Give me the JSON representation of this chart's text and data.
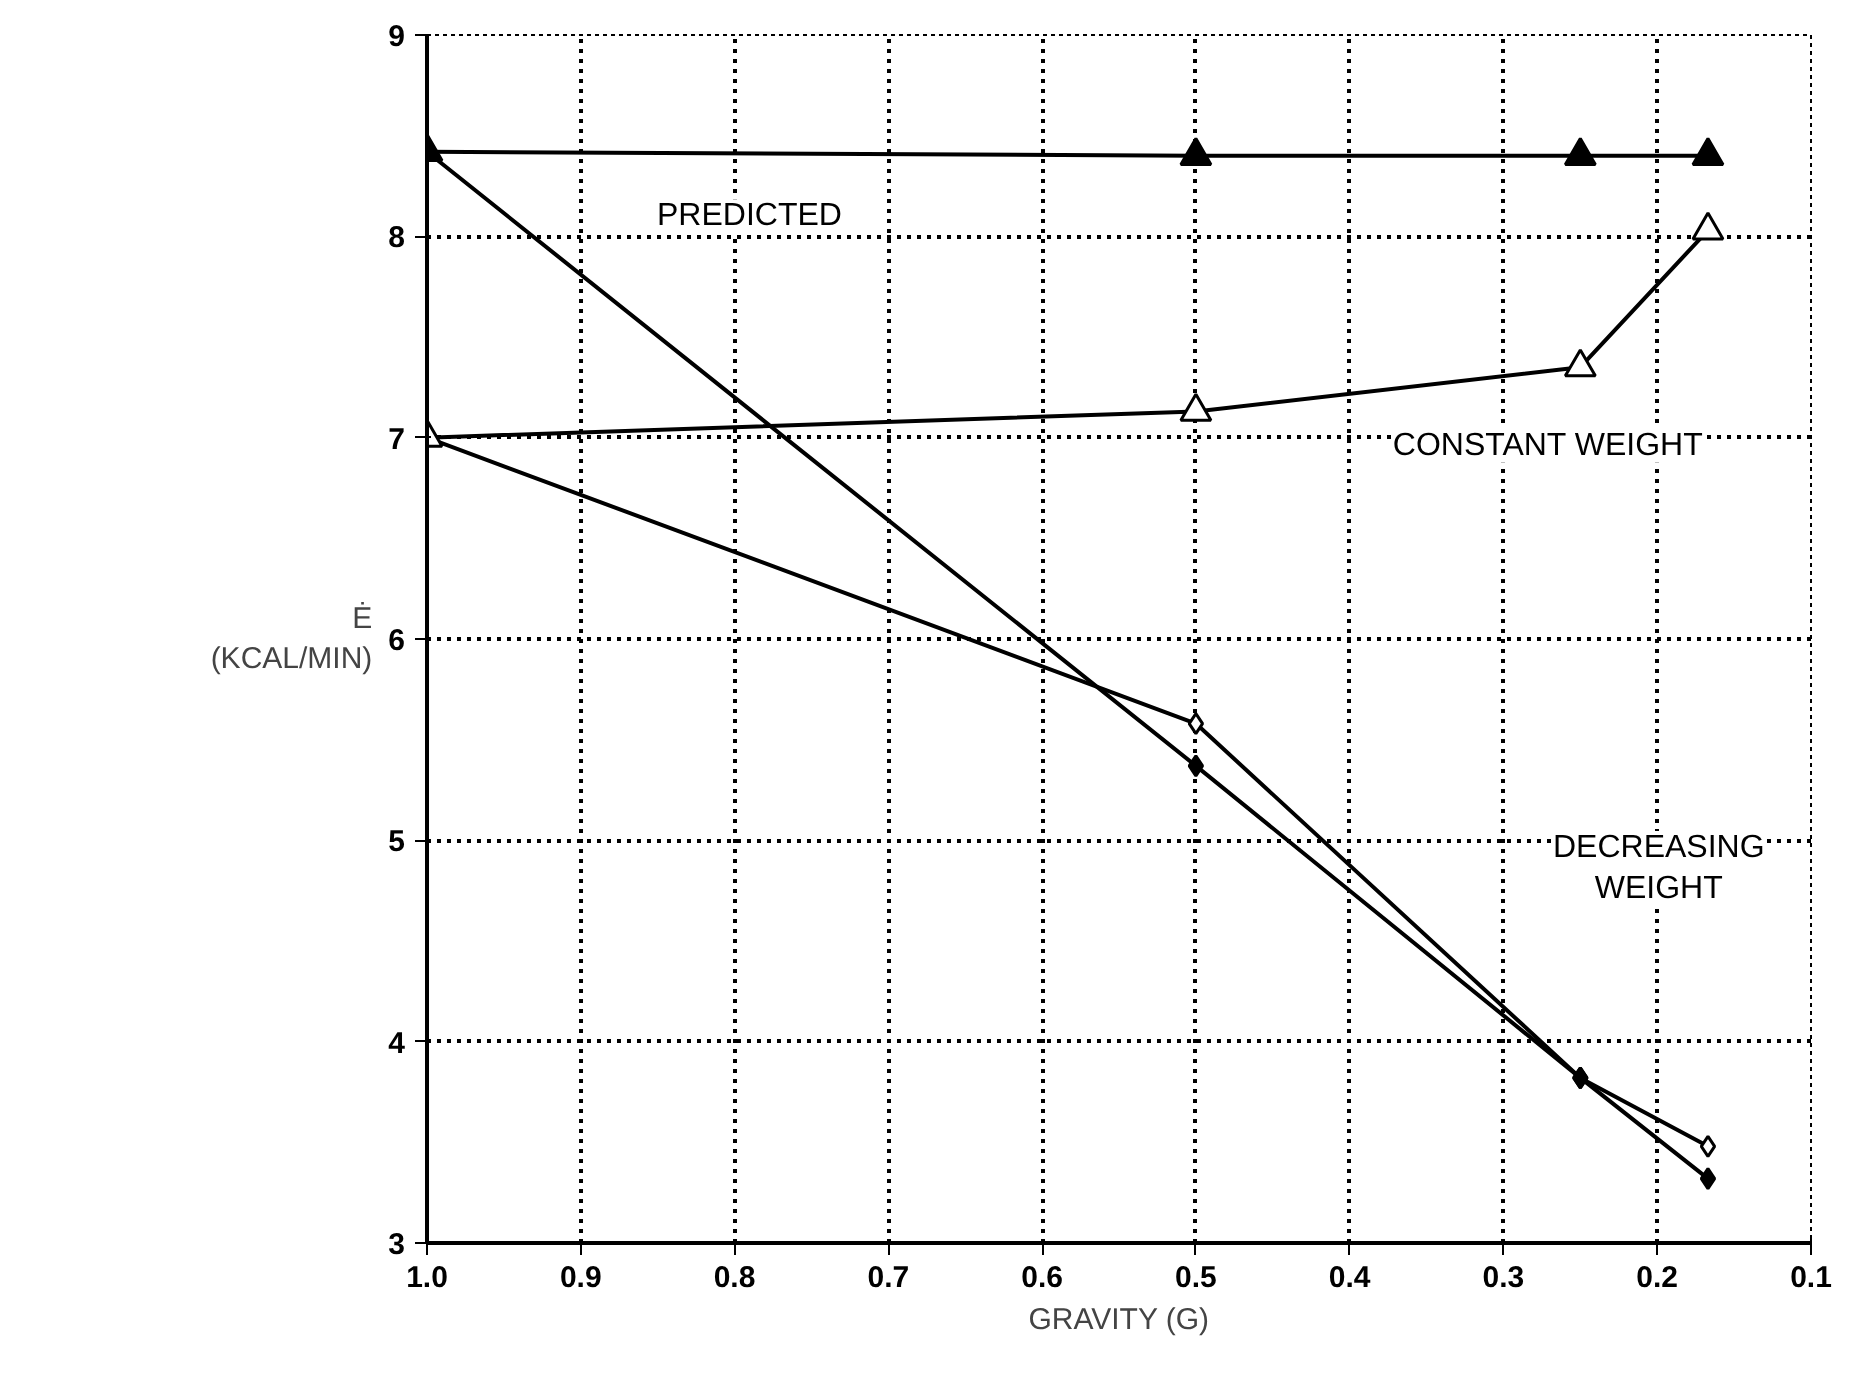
{
  "chart_data": {
    "type": "line",
    "xlabel": "GRAVITY (G)",
    "ylabel": "Ė\n(KCAL/MIN)",
    "xlim": [
      1.0,
      0.1
    ],
    "ylim": [
      3,
      9
    ],
    "xticks": [
      {
        "value": 1.0,
        "label": "1.0"
      },
      0.9,
      0.8,
      0.7,
      0.6,
      0.5,
      0.4,
      0.3,
      0.2,
      0.1
    ],
    "yticks": [
      3,
      4,
      5,
      6,
      7,
      8,
      9
    ],
    "x": [
      1.0,
      0.5,
      0.25,
      0.167
    ],
    "series": [
      {
        "color": "#000000",
        "values": [
          8.42,
          8.4,
          8.4,
          8.4
        ],
        "marker": "triangle"
      },
      {
        "color": "#000000",
        "values": [
          7.0,
          7.13,
          7.35,
          8.03
        ],
        "marker": "triangle"
      },
      {
        "color": "#000000",
        "values": [
          8.42,
          5.37,
          3.82,
          3.32
        ],
        "marker": "diamond"
      },
      {
        "color": "#000000",
        "values": [
          7.0,
          5.58,
          3.82,
          3.48
        ],
        "marker": "diamond"
      }
    ],
    "grid": true,
    "line_style": "solid",
    "annotations": [
      "PREDICTED",
      "CONSTANT WEIGHT",
      "DECREASING\nWEIGHT"
    ]
  }
}
